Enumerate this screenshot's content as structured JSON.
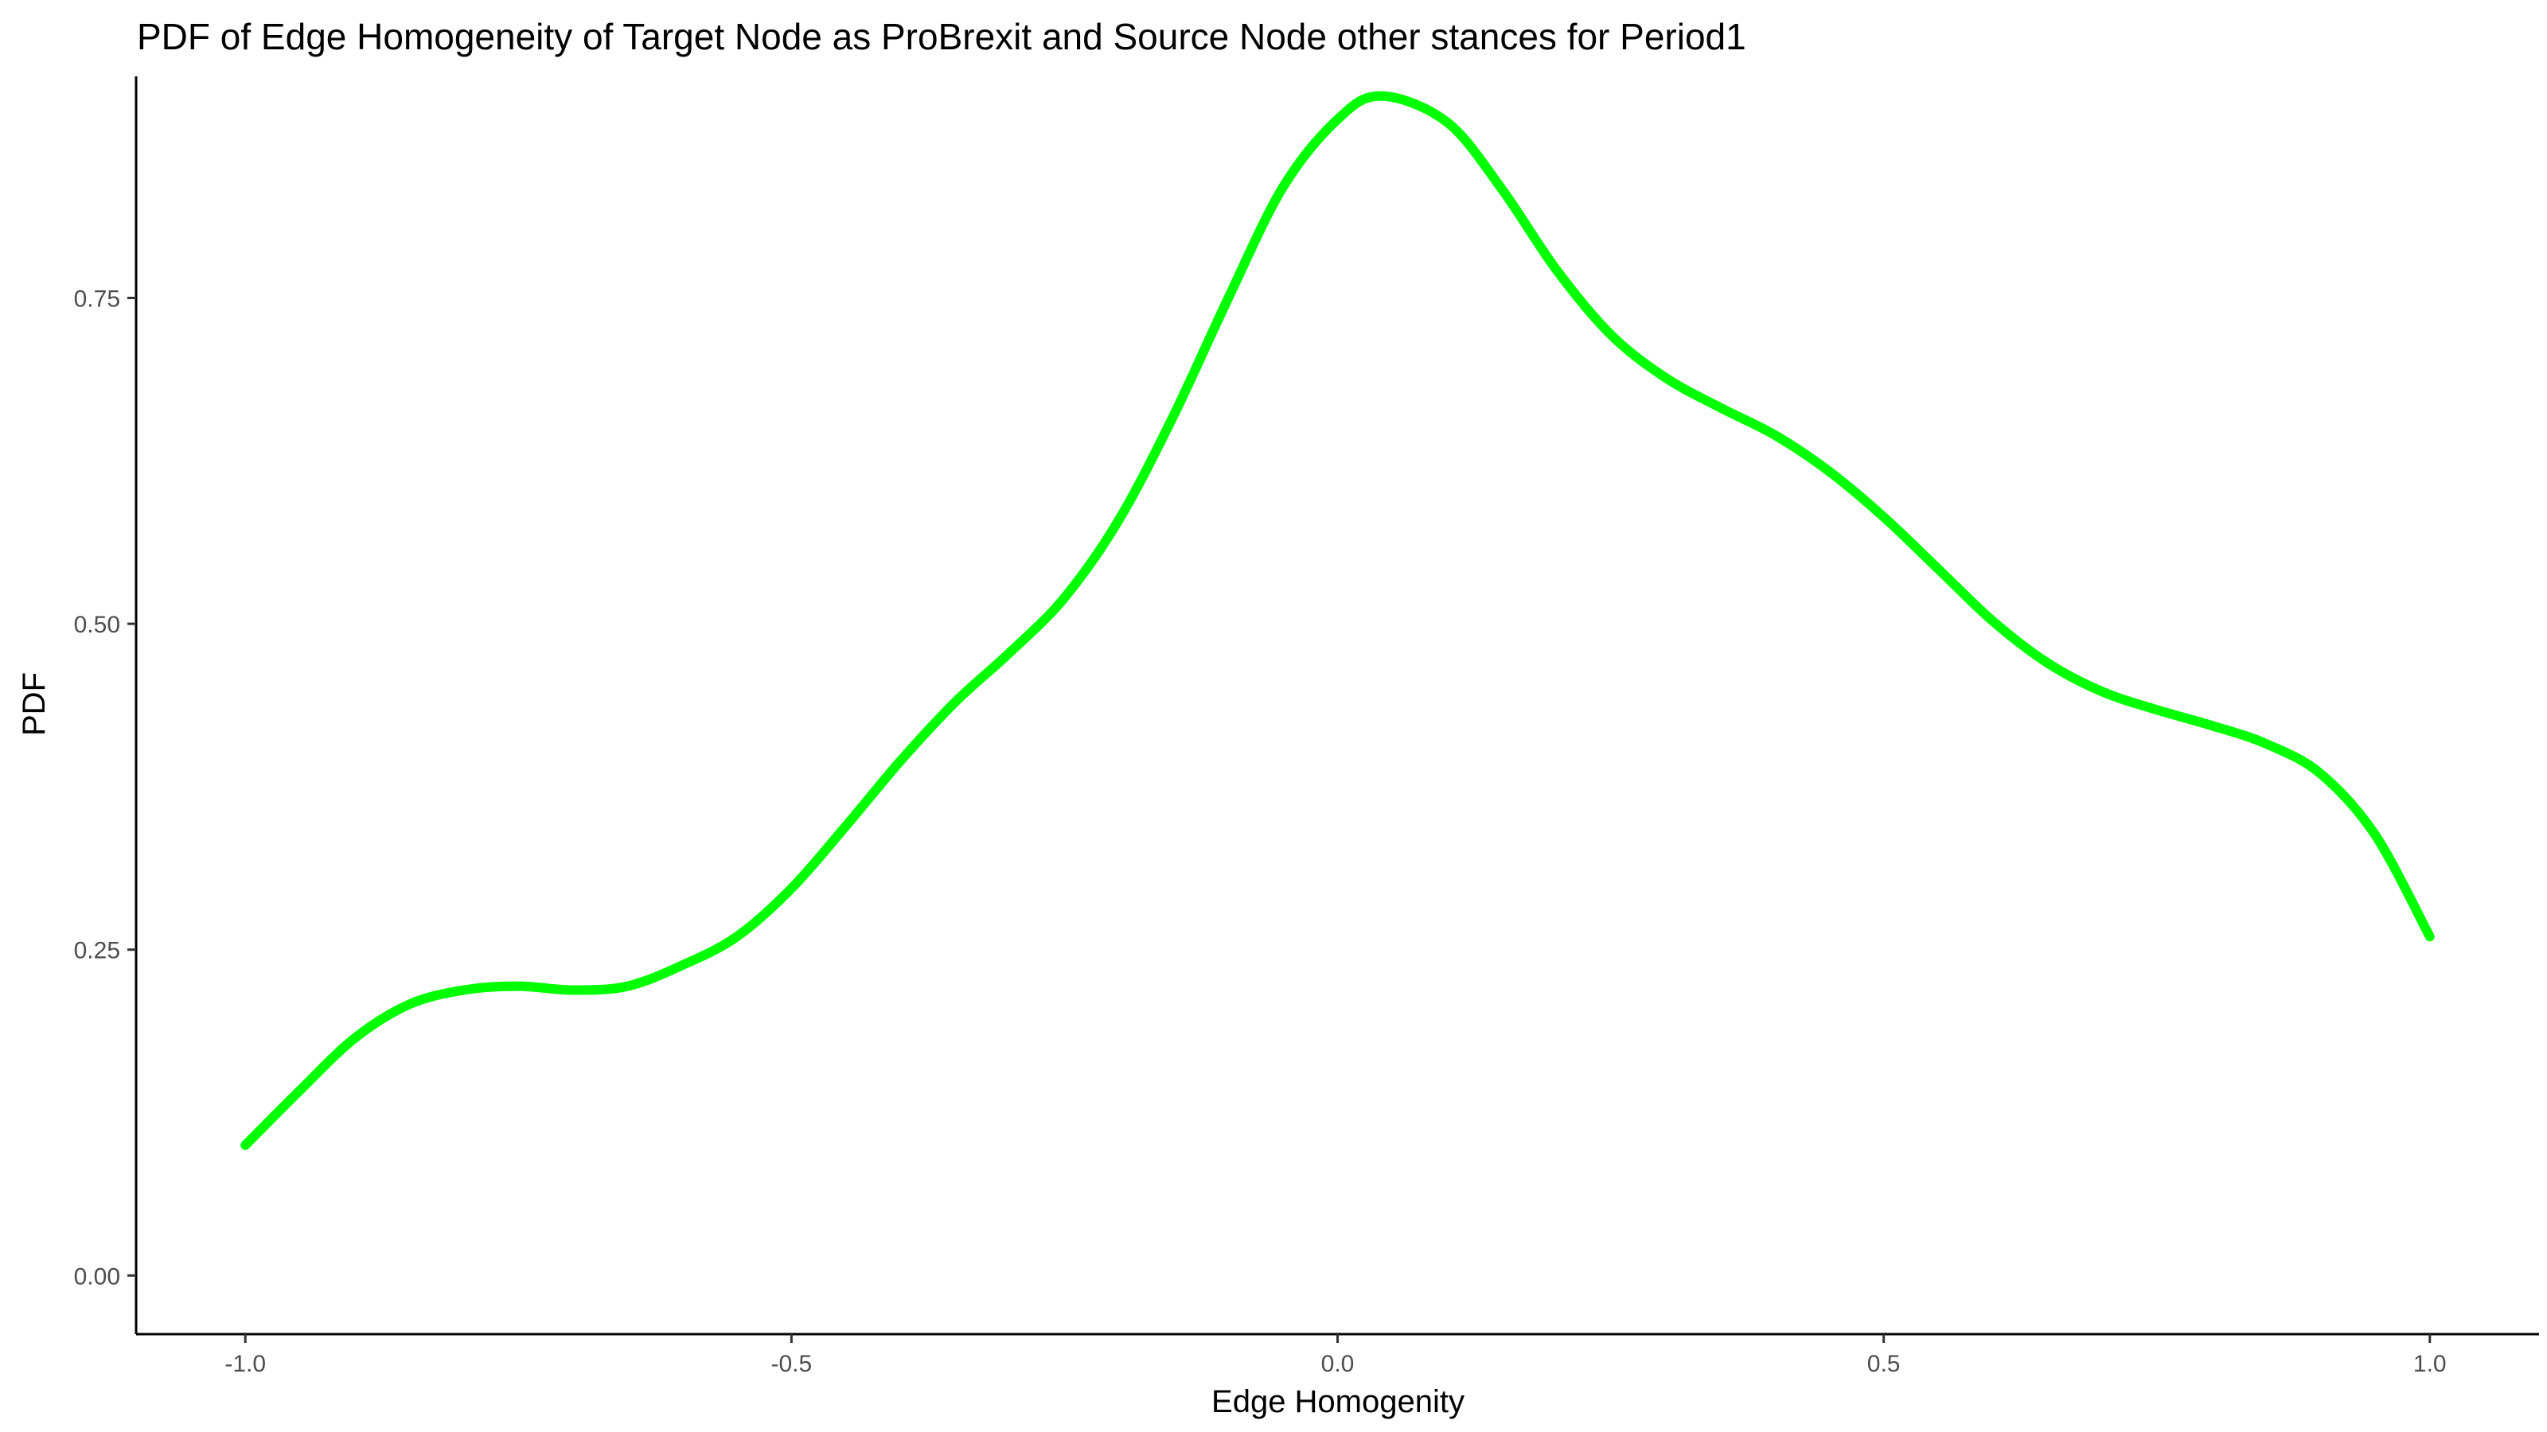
{
  "chart_data": {
    "type": "line",
    "title": "PDF of Edge Homogeneity of Target Node as ProBrexit and Source Node other stances for Period1",
    "xlabel": "Edge Homogenity",
    "ylabel": "PDF",
    "xlim": [
      -1.1,
      1.1
    ],
    "ylim": [
      -0.045,
      0.92
    ],
    "x_ticks": [
      -1.0,
      -0.5,
      0.0,
      0.5,
      1.0
    ],
    "x_tick_labels": [
      "-1.0",
      "-0.5",
      "0.0",
      "0.5",
      "1.0"
    ],
    "y_ticks": [
      0.0,
      0.25,
      0.5,
      0.75
    ],
    "y_tick_labels": [
      "0.00",
      "0.25",
      "0.50",
      "0.75"
    ],
    "grid": false,
    "line_color": "#00ff00",
    "series": [
      {
        "x": [
          -1.0,
          -0.95,
          -0.9,
          -0.85,
          -0.8,
          -0.75,
          -0.7,
          -0.65,
          -0.6,
          -0.55,
          -0.5,
          -0.45,
          -0.4,
          -0.35,
          -0.3,
          -0.25,
          -0.2,
          -0.15,
          -0.1,
          -0.05,
          0.0,
          0.04,
          0.1,
          0.15,
          0.2,
          0.25,
          0.3,
          0.35,
          0.4,
          0.45,
          0.5,
          0.55,
          0.6,
          0.65,
          0.7,
          0.75,
          0.8,
          0.85,
          0.9,
          0.95,
          1.0
        ],
        "y": [
          0.1,
          0.142,
          0.182,
          0.208,
          0.219,
          0.222,
          0.219,
          0.222,
          0.238,
          0.26,
          0.297,
          0.345,
          0.395,
          0.44,
          0.478,
          0.52,
          0.58,
          0.66,
          0.75,
          0.835,
          0.887,
          0.905,
          0.885,
          0.834,
          0.772,
          0.722,
          0.689,
          0.666,
          0.645,
          0.617,
          0.582,
          0.542,
          0.502,
          0.47,
          0.448,
          0.434,
          0.422,
          0.408,
          0.385,
          0.338,
          0.26
        ]
      }
    ]
  }
}
